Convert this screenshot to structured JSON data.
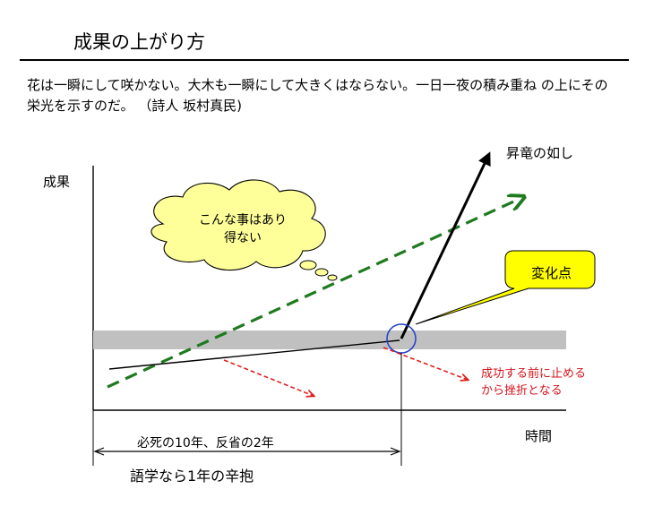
{
  "title": "成果の上がり方",
  "quote": "花は一瞬にして咲かない。大木も一瞬にして大きくはならない。一日一夜の積み重ね の上にその栄光を示すのだ。 （詩人 坂村真民)",
  "diagram": {
    "y_axis_label": "成果",
    "x_axis_label": "時間",
    "steep_growth_label": "昇竜の如し",
    "cloud_thought": "こんな事はあり得ない",
    "callout": "変化点",
    "warning": "成功する前に止めるから挫折となる",
    "span_label": "必死の10年、反省の2年",
    "language_label": "語学なら1年の辛抱"
  },
  "colors": {
    "plateau_band": "#c0c0c0",
    "linear_dashed": "#1f7a1f",
    "drop_arrows": "#e0201b",
    "warning_text": "#d4121b",
    "callout_fill": "#ffff00",
    "cloud_fill": "#ffff99",
    "inflection_circle": "#1f3fd1"
  }
}
